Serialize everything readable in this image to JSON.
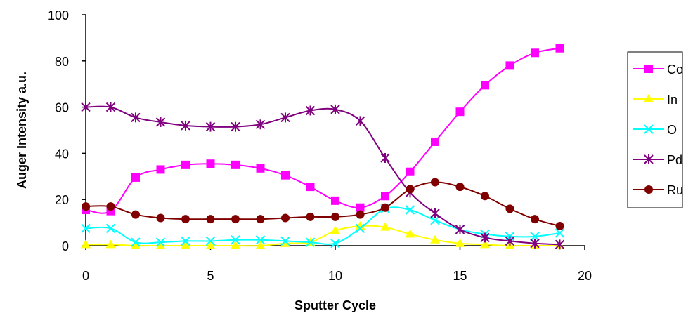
{
  "chart_data": {
    "type": "line",
    "title": "",
    "xlabel": "Sputter Cycle",
    "ylabel": "Auger Intensity a.u.",
    "xlim": [
      0,
      20
    ],
    "ylim": [
      0,
      100
    ],
    "xticks": [
      0,
      5,
      10,
      15,
      20
    ],
    "yticks": [
      0,
      20,
      40,
      60,
      80,
      100
    ],
    "grid": false,
    "legend": "right",
    "x": [
      0,
      1,
      2,
      3,
      4,
      5,
      6,
      7,
      8,
      9,
      10,
      11,
      12,
      13,
      14,
      15,
      16,
      17,
      18,
      19
    ],
    "series": [
      {
        "name": "Co",
        "color": "#ff00ff",
        "marker": "square",
        "values": [
          15.5,
          15,
          29.5,
          33,
          35,
          35.5,
          35,
          33.5,
          30.5,
          25.5,
          19.5,
          16.5,
          21.5,
          32,
          45,
          58,
          69.5,
          78,
          83.5,
          85.5
        ]
      },
      {
        "name": "In",
        "color": "#ffff00",
        "marker": "triangle",
        "values": [
          0.5,
          0.5,
          0,
          0,
          0,
          0,
          0,
          0,
          1,
          1.5,
          6.5,
          8.5,
          8,
          5,
          2.5,
          1,
          0.5,
          0,
          0,
          0
        ]
      },
      {
        "name": "O",
        "color": "#00ffff",
        "marker": "x",
        "values": [
          7.5,
          7.5,
          1.5,
          1.5,
          2,
          2,
          2.5,
          2.5,
          2,
          1.5,
          1,
          7.5,
          16,
          15.5,
          11,
          7,
          5,
          4,
          4,
          5.5
        ]
      },
      {
        "name": "Pd",
        "color": "#800080",
        "marker": "asterisk",
        "values": [
          60,
          60,
          55.5,
          53.5,
          52,
          51.5,
          51.5,
          52.5,
          55.5,
          58.5,
          59,
          54,
          38,
          23,
          14,
          7,
          3.5,
          2,
          1,
          0.5
        ]
      },
      {
        "name": "Ru",
        "color": "#800000",
        "marker": "circle",
        "values": [
          17,
          17,
          13.5,
          12,
          11.5,
          11.5,
          11.5,
          11.5,
          12,
          12.5,
          12.5,
          13.5,
          16.5,
          24.5,
          27.5,
          25.5,
          21.5,
          16,
          11.5,
          8.5
        ]
      }
    ]
  }
}
